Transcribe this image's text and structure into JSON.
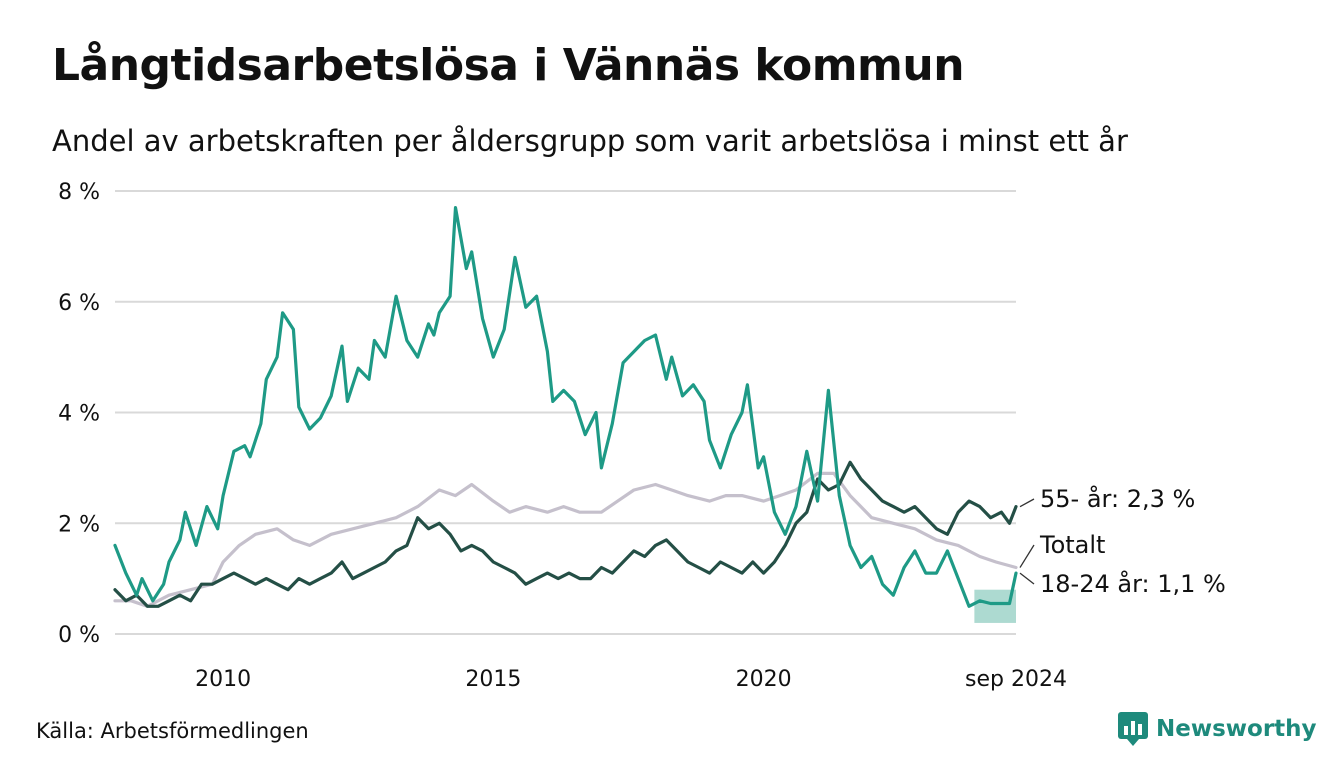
{
  "header": {
    "title": "Långtidsarbetslösa i Vännäs kommun",
    "subtitle": "Andel av arbetskraften per åldersgrupp som varit arbetslösa i minst ett år"
  },
  "footer": {
    "source": "Källa: Arbetsförmedlingen",
    "brand": "Newsworthy"
  },
  "colors": {
    "youth": "#1e9a86",
    "senior": "#244f46",
    "total": "#c5c0cc",
    "band": "#9fd3c9",
    "grid": "#d9d9d9"
  },
  "chart_data": {
    "type": "line",
    "title": "Långtidsarbetslösa i Vännäs kommun",
    "subtitle": "Andel av arbetskraften per åldersgrupp som varit arbetslösa i minst ett år",
    "x_ticks": [
      {
        "label": "2010",
        "x": 2010.0
      },
      {
        "label": "2015",
        "x": 2015.0
      },
      {
        "label": "2020",
        "x": 2020.0
      },
      {
        "label": "sep 2024",
        "x": 2024.67
      }
    ],
    "y_ticks": [
      {
        "label": "0 %",
        "value": 0
      },
      {
        "label": "2 %",
        "value": 2
      },
      {
        "label": "4 %",
        "value": 4
      },
      {
        "label": "6 %",
        "value": 6
      },
      {
        "label": "8 %",
        "value": 8
      }
    ],
    "xlim": [
      2008.0,
      2024.67
    ],
    "ylim": [
      0,
      8
    ],
    "grid": true,
    "series": [
      {
        "name": "18-24 år",
        "end_label": "18-24 år: 1,1 %",
        "color": "#1e9a86",
        "points": [
          [
            2008.0,
            1.6
          ],
          [
            2008.2,
            1.1
          ],
          [
            2008.4,
            0.7
          ],
          [
            2008.5,
            1.0
          ],
          [
            2008.7,
            0.6
          ],
          [
            2008.9,
            0.9
          ],
          [
            2009.0,
            1.3
          ],
          [
            2009.2,
            1.7
          ],
          [
            2009.3,
            2.2
          ],
          [
            2009.5,
            1.6
          ],
          [
            2009.7,
            2.3
          ],
          [
            2009.9,
            1.9
          ],
          [
            2010.0,
            2.5
          ],
          [
            2010.2,
            3.3
          ],
          [
            2010.4,
            3.4
          ],
          [
            2010.5,
            3.2
          ],
          [
            2010.7,
            3.8
          ],
          [
            2010.8,
            4.6
          ],
          [
            2011.0,
            5.0
          ],
          [
            2011.1,
            5.8
          ],
          [
            2011.3,
            5.5
          ],
          [
            2011.4,
            4.1
          ],
          [
            2011.6,
            3.7
          ],
          [
            2011.8,
            3.9
          ],
          [
            2012.0,
            4.3
          ],
          [
            2012.2,
            5.2
          ],
          [
            2012.3,
            4.2
          ],
          [
            2012.5,
            4.8
          ],
          [
            2012.7,
            4.6
          ],
          [
            2012.8,
            5.3
          ],
          [
            2013.0,
            5.0
          ],
          [
            2013.2,
            6.1
          ],
          [
            2013.4,
            5.3
          ],
          [
            2013.6,
            5.0
          ],
          [
            2013.8,
            5.6
          ],
          [
            2013.9,
            5.4
          ],
          [
            2014.0,
            5.8
          ],
          [
            2014.2,
            6.1
          ],
          [
            2014.3,
            7.7
          ],
          [
            2014.5,
            6.6
          ],
          [
            2014.6,
            6.9
          ],
          [
            2014.8,
            5.7
          ],
          [
            2015.0,
            5.0
          ],
          [
            2015.2,
            5.5
          ],
          [
            2015.4,
            6.8
          ],
          [
            2015.6,
            5.9
          ],
          [
            2015.8,
            6.1
          ],
          [
            2016.0,
            5.1
          ],
          [
            2016.1,
            4.2
          ],
          [
            2016.3,
            4.4
          ],
          [
            2016.5,
            4.2
          ],
          [
            2016.7,
            3.6
          ],
          [
            2016.9,
            4.0
          ],
          [
            2017.0,
            3.0
          ],
          [
            2017.2,
            3.8
          ],
          [
            2017.4,
            4.9
          ],
          [
            2017.6,
            5.1
          ],
          [
            2017.8,
            5.3
          ],
          [
            2018.0,
            5.4
          ],
          [
            2018.2,
            4.6
          ],
          [
            2018.3,
            5.0
          ],
          [
            2018.5,
            4.3
          ],
          [
            2018.7,
            4.5
          ],
          [
            2018.9,
            4.2
          ],
          [
            2019.0,
            3.5
          ],
          [
            2019.2,
            3.0
          ],
          [
            2019.4,
            3.6
          ],
          [
            2019.6,
            4.0
          ],
          [
            2019.7,
            4.5
          ],
          [
            2019.9,
            3.0
          ],
          [
            2020.0,
            3.2
          ],
          [
            2020.2,
            2.2
          ],
          [
            2020.4,
            1.8
          ],
          [
            2020.6,
            2.3
          ],
          [
            2020.8,
            3.3
          ],
          [
            2021.0,
            2.4
          ],
          [
            2021.2,
            4.4
          ],
          [
            2021.4,
            2.5
          ],
          [
            2021.6,
            1.6
          ],
          [
            2021.8,
            1.2
          ],
          [
            2022.0,
            1.4
          ],
          [
            2022.2,
            0.9
          ],
          [
            2022.4,
            0.7
          ],
          [
            2022.6,
            1.2
          ],
          [
            2022.8,
            1.5
          ],
          [
            2023.0,
            1.1
          ],
          [
            2023.2,
            1.1
          ],
          [
            2023.4,
            1.5
          ],
          [
            2023.6,
            1.0
          ],
          [
            2023.8,
            0.5
          ],
          [
            2024.0,
            0.6
          ],
          [
            2024.2,
            0.55
          ],
          [
            2024.4,
            0.55
          ],
          [
            2024.55,
            0.55
          ],
          [
            2024.67,
            1.1
          ]
        ],
        "band": {
          "x_start": 2023.9,
          "x_end": 2024.67,
          "low": 0.2,
          "high": 0.8
        }
      },
      {
        "name": "55- år",
        "end_label": "55- år: 2,3 %",
        "color": "#244f46",
        "points": [
          [
            2008.0,
            0.8
          ],
          [
            2008.2,
            0.6
          ],
          [
            2008.4,
            0.7
          ],
          [
            2008.6,
            0.5
          ],
          [
            2008.8,
            0.5
          ],
          [
            2009.0,
            0.6
          ],
          [
            2009.2,
            0.7
          ],
          [
            2009.4,
            0.6
          ],
          [
            2009.6,
            0.9
          ],
          [
            2009.8,
            0.9
          ],
          [
            2010.0,
            1.0
          ],
          [
            2010.2,
            1.1
          ],
          [
            2010.4,
            1.0
          ],
          [
            2010.6,
            0.9
          ],
          [
            2010.8,
            1.0
          ],
          [
            2011.0,
            0.9
          ],
          [
            2011.2,
            0.8
          ],
          [
            2011.4,
            1.0
          ],
          [
            2011.6,
            0.9
          ],
          [
            2011.8,
            1.0
          ],
          [
            2012.0,
            1.1
          ],
          [
            2012.2,
            1.3
          ],
          [
            2012.4,
            1.0
          ],
          [
            2012.6,
            1.1
          ],
          [
            2012.8,
            1.2
          ],
          [
            2013.0,
            1.3
          ],
          [
            2013.2,
            1.5
          ],
          [
            2013.4,
            1.6
          ],
          [
            2013.6,
            2.1
          ],
          [
            2013.8,
            1.9
          ],
          [
            2014.0,
            2.0
          ],
          [
            2014.2,
            1.8
          ],
          [
            2014.4,
            1.5
          ],
          [
            2014.6,
            1.6
          ],
          [
            2014.8,
            1.5
          ],
          [
            2015.0,
            1.3
          ],
          [
            2015.2,
            1.2
          ],
          [
            2015.4,
            1.1
          ],
          [
            2015.6,
            0.9
          ],
          [
            2015.8,
            1.0
          ],
          [
            2016.0,
            1.1
          ],
          [
            2016.2,
            1.0
          ],
          [
            2016.4,
            1.1
          ],
          [
            2016.6,
            1.0
          ],
          [
            2016.8,
            1.0
          ],
          [
            2017.0,
            1.2
          ],
          [
            2017.2,
            1.1
          ],
          [
            2017.4,
            1.3
          ],
          [
            2017.6,
            1.5
          ],
          [
            2017.8,
            1.4
          ],
          [
            2018.0,
            1.6
          ],
          [
            2018.2,
            1.7
          ],
          [
            2018.4,
            1.5
          ],
          [
            2018.6,
            1.3
          ],
          [
            2018.8,
            1.2
          ],
          [
            2019.0,
            1.1
          ],
          [
            2019.2,
            1.3
          ],
          [
            2019.4,
            1.2
          ],
          [
            2019.6,
            1.1
          ],
          [
            2019.8,
            1.3
          ],
          [
            2020.0,
            1.1
          ],
          [
            2020.2,
            1.3
          ],
          [
            2020.4,
            1.6
          ],
          [
            2020.6,
            2.0
          ],
          [
            2020.8,
            2.2
          ],
          [
            2021.0,
            2.8
          ],
          [
            2021.2,
            2.6
          ],
          [
            2021.4,
            2.7
          ],
          [
            2021.6,
            3.1
          ],
          [
            2021.8,
            2.8
          ],
          [
            2022.0,
            2.6
          ],
          [
            2022.2,
            2.4
          ],
          [
            2022.4,
            2.3
          ],
          [
            2022.6,
            2.2
          ],
          [
            2022.8,
            2.3
          ],
          [
            2023.0,
            2.1
          ],
          [
            2023.2,
            1.9
          ],
          [
            2023.4,
            1.8
          ],
          [
            2023.6,
            2.2
          ],
          [
            2023.8,
            2.4
          ],
          [
            2024.0,
            2.3
          ],
          [
            2024.2,
            2.1
          ],
          [
            2024.4,
            2.2
          ],
          [
            2024.55,
            2.0
          ],
          [
            2024.67,
            2.3
          ]
        ]
      },
      {
        "name": "Totalt",
        "end_label": "Totalt",
        "color": "#c5c0cc",
        "points": [
          [
            2008.0,
            0.6
          ],
          [
            2008.3,
            0.6
          ],
          [
            2008.6,
            0.5
          ],
          [
            2009.0,
            0.7
          ],
          [
            2009.4,
            0.8
          ],
          [
            2009.8,
            0.9
          ],
          [
            2010.0,
            1.3
          ],
          [
            2010.3,
            1.6
          ],
          [
            2010.6,
            1.8
          ],
          [
            2011.0,
            1.9
          ],
          [
            2011.3,
            1.7
          ],
          [
            2011.6,
            1.6
          ],
          [
            2012.0,
            1.8
          ],
          [
            2012.4,
            1.9
          ],
          [
            2012.8,
            2.0
          ],
          [
            2013.2,
            2.1
          ],
          [
            2013.6,
            2.3
          ],
          [
            2014.0,
            2.6
          ],
          [
            2014.3,
            2.5
          ],
          [
            2014.6,
            2.7
          ],
          [
            2015.0,
            2.4
          ],
          [
            2015.3,
            2.2
          ],
          [
            2015.6,
            2.3
          ],
          [
            2016.0,
            2.2
          ],
          [
            2016.3,
            2.3
          ],
          [
            2016.6,
            2.2
          ],
          [
            2017.0,
            2.2
          ],
          [
            2017.3,
            2.4
          ],
          [
            2017.6,
            2.6
          ],
          [
            2018.0,
            2.7
          ],
          [
            2018.3,
            2.6
          ],
          [
            2018.6,
            2.5
          ],
          [
            2019.0,
            2.4
          ],
          [
            2019.3,
            2.5
          ],
          [
            2019.6,
            2.5
          ],
          [
            2020.0,
            2.4
          ],
          [
            2020.3,
            2.5
          ],
          [
            2020.6,
            2.6
          ],
          [
            2021.0,
            2.9
          ],
          [
            2021.3,
            2.9
          ],
          [
            2021.6,
            2.5
          ],
          [
            2022.0,
            2.1
          ],
          [
            2022.4,
            2.0
          ],
          [
            2022.8,
            1.9
          ],
          [
            2023.2,
            1.7
          ],
          [
            2023.6,
            1.6
          ],
          [
            2024.0,
            1.4
          ],
          [
            2024.3,
            1.3
          ],
          [
            2024.67,
            1.2
          ]
        ]
      }
    ]
  }
}
